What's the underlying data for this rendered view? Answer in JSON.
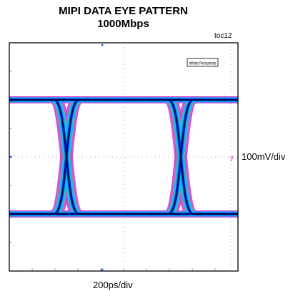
{
  "chart_data": {
    "type": "eye-diagram",
    "title": "MIPI DATA EYE PATTERN",
    "subtitle": "1000Mbps",
    "figure_id": "toc12",
    "xlabel": "200ps/div",
    "ylabel": "100mV/div",
    "scope_annotation": "Infinite Persistence",
    "grid": true,
    "time_divisions": 10,
    "voltage_divisions": 8,
    "crossing_points_div": [
      2.5,
      7.5
    ],
    "high_level_div": 2.0,
    "low_level_div": -2.0,
    "unit_interval_div": 5.0
  },
  "colors": {
    "trace_low_density": "#d040d0",
    "trace_mid_density": "#00c0f0",
    "trace_high_density": "#0030e0",
    "trace_peak_density": "#000040",
    "trace_warm": "#e0e000",
    "frame": "#000000",
    "grid": "#808080",
    "cursor": "#2060ff"
  }
}
